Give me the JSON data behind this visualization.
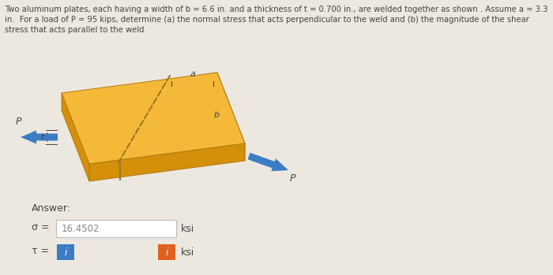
{
  "bg_color": "#ede8df",
  "title_text": "Two aluminum plates, each having a width of b = 6.6 in. and a thickness of t = 0.700 in., are welded together as shown . Assume a = 3.3\nin.  For a load of P = 95 kips, determine (a) the normal stress that acts perpendicular to the weld and (b) the magnitude of the shear\nstress that acts parallel to the weld.",
  "answer_label": "Answer:",
  "sigma_label": "σ =",
  "tau_label": "τ =",
  "sigma_value": "16.4502",
  "unit_ksi": "ksi",
  "plate_top": "#f5b93a",
  "plate_front": "#d4900a",
  "plate_right": "#c07808",
  "weld_color": "#9a7820",
  "arrow_color": "#3b7dc4",
  "label_color": "#444444",
  "box_color_blue": "#3b7dc4",
  "box_color_orange": "#e06020",
  "plate_edge": "#b07810"
}
